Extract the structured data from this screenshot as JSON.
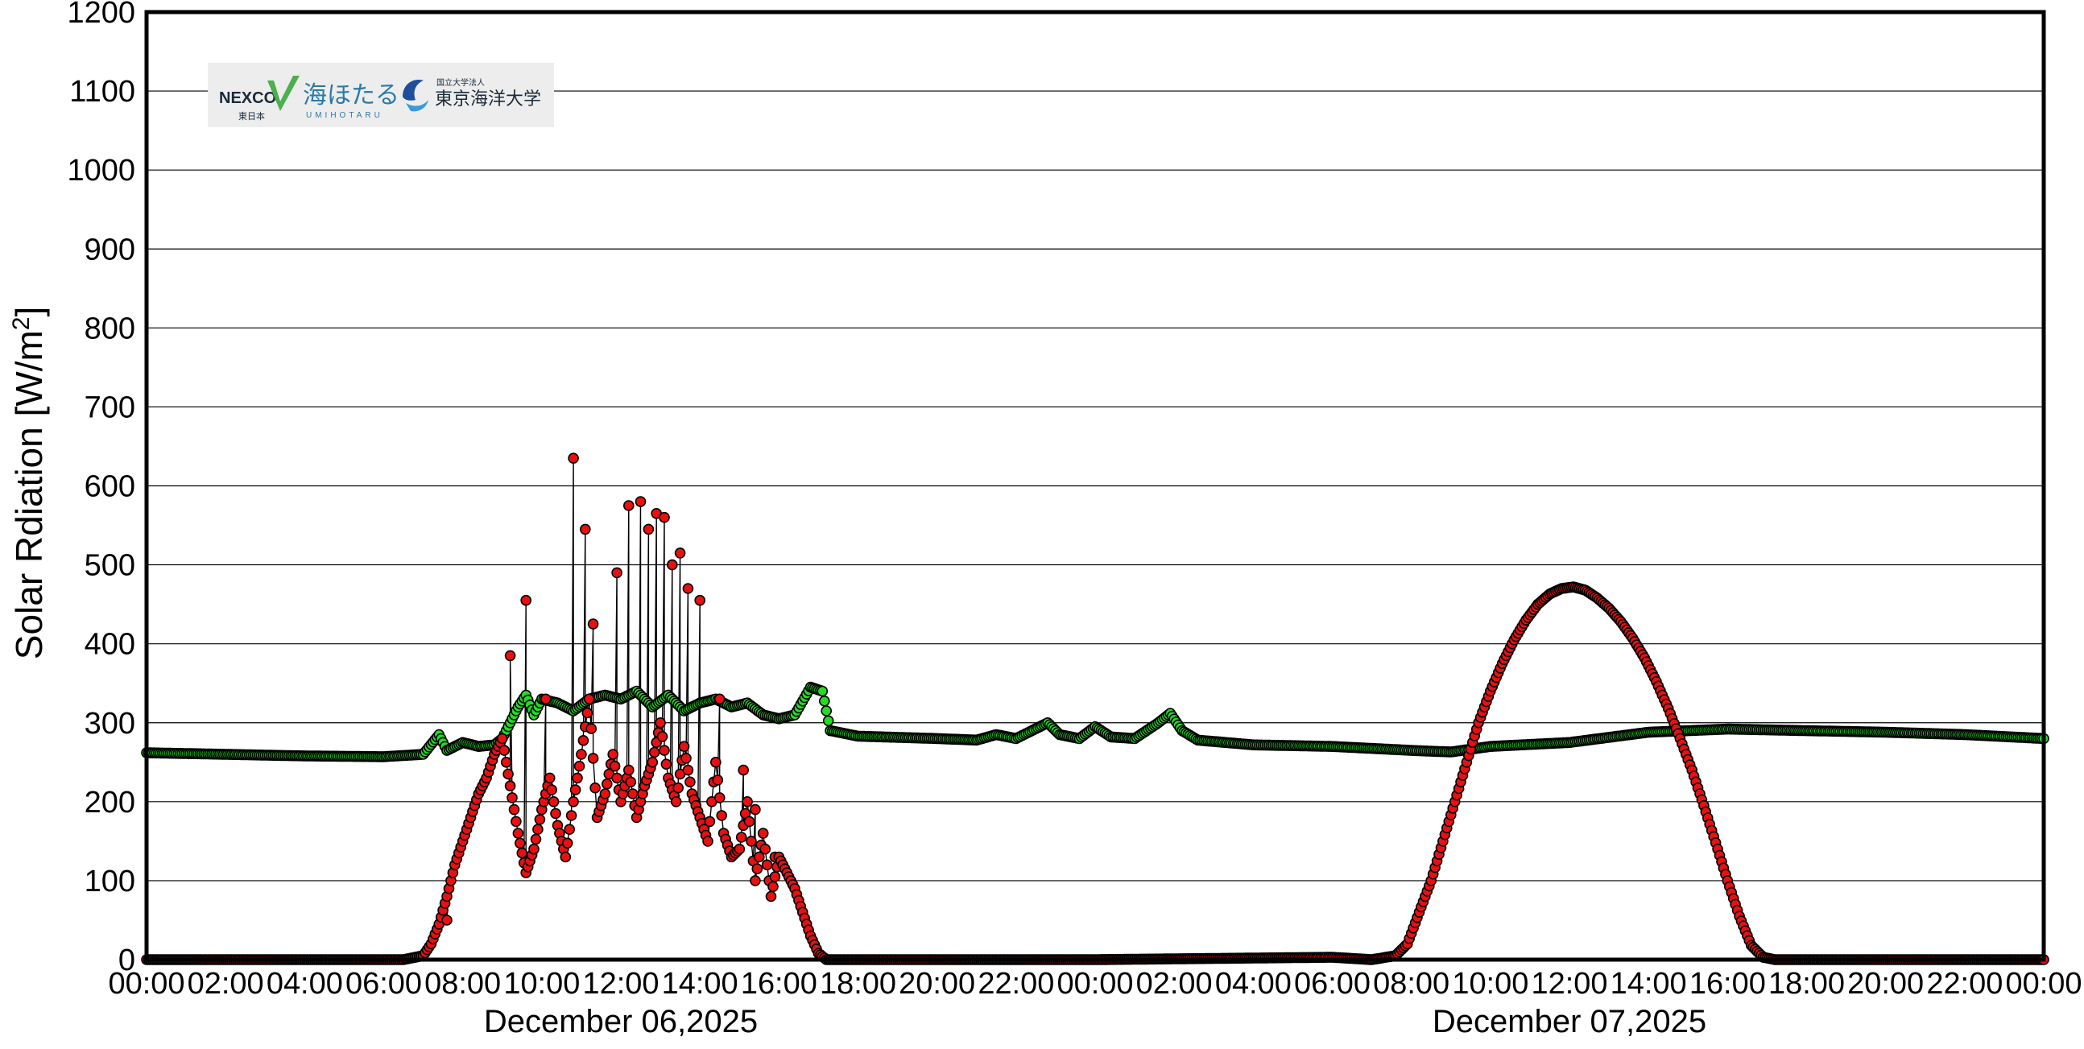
{
  "chart_data": {
    "type": "scatter",
    "ylabel_base": "Solar Rdiation [W/m",
    "ylabel_sup": "2",
    "ylabel_close": "]",
    "ylim": [
      0,
      1200
    ],
    "yticks": [
      0,
      100,
      200,
      300,
      400,
      500,
      600,
      700,
      800,
      900,
      1000,
      1100,
      1200
    ],
    "xlim": [
      0,
      48
    ],
    "xticks": [
      0,
      2,
      4,
      6,
      8,
      10,
      12,
      14,
      16,
      18,
      20,
      22,
      24,
      26,
      28,
      30,
      32,
      34,
      36,
      38,
      40,
      42,
      44,
      46,
      48
    ],
    "xtick_labels": [
      "00:00",
      "02:00",
      "04:00",
      "06:00",
      "08:00",
      "10:00",
      "12:00",
      "14:00",
      "16:00",
      "18:00",
      "20:00",
      "22:00",
      "00:00",
      "02:00",
      "04:00",
      "06:00",
      "08:00",
      "10:00",
      "12:00",
      "14:00",
      "16:00",
      "18:00",
      "20:00",
      "22:00",
      "00:00"
    ],
    "dates": [
      {
        "label": "December 06,2025",
        "center_hour": 12
      },
      {
        "label": "December 07,2025",
        "center_hour": 36
      }
    ],
    "grid": true,
    "series": [
      {
        "color": "#e81010",
        "edge": "#000000",
        "points": [
          [
            0,
            0
          ],
          [
            6.5,
            0
          ],
          [
            7,
            5
          ],
          [
            7.2,
            20
          ],
          [
            7.4,
            45
          ],
          [
            7.6,
            80
          ],
          [
            7.8,
            120
          ],
          [
            8,
            150
          ],
          [
            8.2,
            180
          ],
          [
            8.4,
            210
          ],
          [
            8.6,
            230
          ],
          [
            8.8,
            260
          ],
          [
            9.0,
            280
          ],
          [
            9.2,
            220
          ],
          [
            9.4,
            160
          ],
          [
            9.6,
            110
          ],
          [
            9.8,
            140
          ],
          [
            10.0,
            190
          ],
          [
            10.2,
            230
          ],
          [
            10.4,
            170
          ],
          [
            10.6,
            130
          ],
          [
            10.8,
            200
          ],
          [
            11.0,
            260
          ],
          [
            11.2,
            330
          ],
          [
            11.4,
            180
          ],
          [
            11.6,
            210
          ],
          [
            11.8,
            260
          ],
          [
            12.0,
            200
          ],
          [
            12.2,
            240
          ],
          [
            12.4,
            180
          ],
          [
            12.6,
            220
          ],
          [
            12.8,
            250
          ],
          [
            13.0,
            300
          ],
          [
            13.2,
            230
          ],
          [
            13.4,
            200
          ],
          [
            13.6,
            270
          ],
          [
            13.8,
            210
          ],
          [
            14.0,
            180
          ],
          [
            14.2,
            150
          ],
          [
            14.4,
            250
          ],
          [
            14.6,
            160
          ],
          [
            14.8,
            130
          ],
          [
            15.0,
            140
          ],
          [
            15.2,
            200
          ],
          [
            15.4,
            100
          ],
          [
            15.6,
            160
          ],
          [
            15.8,
            80
          ],
          [
            16.0,
            130
          ],
          [
            16.2,
            110
          ],
          [
            16.4,
            90
          ],
          [
            16.6,
            60
          ],
          [
            16.8,
            30
          ],
          [
            17.0,
            8
          ],
          [
            17.2,
            0
          ],
          [
            24,
            0
          ],
          [
            30,
            3
          ],
          [
            31.0,
            0
          ],
          [
            31.6,
            5
          ],
          [
            31.9,
            20
          ],
          [
            32.2,
            60
          ],
          [
            32.5,
            100
          ],
          [
            32.8,
            150
          ],
          [
            33.1,
            200
          ],
          [
            33.4,
            250
          ],
          [
            33.7,
            300
          ],
          [
            34.0,
            340
          ],
          [
            34.3,
            375
          ],
          [
            34.6,
            405
          ],
          [
            34.9,
            430
          ],
          [
            35.2,
            450
          ],
          [
            35.5,
            463
          ],
          [
            35.8,
            470
          ],
          [
            36.1,
            472
          ],
          [
            36.4,
            468
          ],
          [
            36.7,
            458
          ],
          [
            37.0,
            445
          ],
          [
            37.3,
            428
          ],
          [
            37.6,
            407
          ],
          [
            37.9,
            382
          ],
          [
            38.2,
            352
          ],
          [
            38.5,
            318
          ],
          [
            38.8,
            280
          ],
          [
            39.1,
            240
          ],
          [
            39.4,
            195
          ],
          [
            39.7,
            148
          ],
          [
            40.0,
            100
          ],
          [
            40.3,
            55
          ],
          [
            40.6,
            18
          ],
          [
            40.9,
            3
          ],
          [
            41.2,
            0
          ],
          [
            48,
            0
          ]
        ],
        "spikes": [
          [
            7.6,
            50
          ],
          [
            9.2,
            385
          ],
          [
            9.6,
            455
          ],
          [
            10.1,
            330
          ],
          [
            10.8,
            635
          ],
          [
            11.1,
            545
          ],
          [
            11.3,
            425
          ],
          [
            11.9,
            490
          ],
          [
            12.2,
            575
          ],
          [
            12.5,
            580
          ],
          [
            12.7,
            545
          ],
          [
            12.9,
            565
          ],
          [
            13.1,
            560
          ],
          [
            13.3,
            500
          ],
          [
            13.5,
            515
          ],
          [
            13.7,
            470
          ],
          [
            14.0,
            455
          ],
          [
            14.5,
            330
          ],
          [
            15.1,
            240
          ],
          [
            15.4,
            190
          ],
          [
            15.9,
            130
          ]
        ]
      },
      {
        "color": "#22dd22",
        "edge": "#000000",
        "points": [
          [
            0,
            262
          ],
          [
            2,
            260
          ],
          [
            4,
            258
          ],
          [
            6,
            257
          ],
          [
            7.0,
            260
          ],
          [
            7.4,
            285
          ],
          [
            7.6,
            265
          ],
          [
            8.0,
            275
          ],
          [
            8.4,
            270
          ],
          [
            8.8,
            272
          ],
          [
            9.0,
            280
          ],
          [
            9.2,
            300
          ],
          [
            9.4,
            320
          ],
          [
            9.6,
            335
          ],
          [
            9.8,
            310
          ],
          [
            10.0,
            330
          ],
          [
            10.4,
            325
          ],
          [
            10.8,
            315
          ],
          [
            11.2,
            330
          ],
          [
            11.6,
            335
          ],
          [
            12.0,
            330
          ],
          [
            12.4,
            340
          ],
          [
            12.8,
            320
          ],
          [
            13.2,
            335
          ],
          [
            13.6,
            315
          ],
          [
            14.0,
            325
          ],
          [
            14.4,
            330
          ],
          [
            14.8,
            320
          ],
          [
            15.2,
            325
          ],
          [
            15.6,
            310
          ],
          [
            16.0,
            305
          ],
          [
            16.4,
            310
          ],
          [
            16.8,
            345
          ],
          [
            17.1,
            340
          ],
          [
            17.3,
            290
          ],
          [
            18,
            283
          ],
          [
            20,
            280
          ],
          [
            21,
            278
          ],
          [
            21.5,
            285
          ],
          [
            22.0,
            280
          ],
          [
            22.8,
            300
          ],
          [
            23.1,
            285
          ],
          [
            23.6,
            280
          ],
          [
            24.0,
            295
          ],
          [
            24.4,
            282
          ],
          [
            25.0,
            280
          ],
          [
            25.6,
            300
          ],
          [
            25.9,
            312
          ],
          [
            26.2,
            290
          ],
          [
            26.6,
            278
          ],
          [
            28,
            272
          ],
          [
            30,
            270
          ],
          [
            32,
            265
          ],
          [
            33,
            263
          ],
          [
            34,
            270
          ],
          [
            36,
            275
          ],
          [
            38,
            288
          ],
          [
            40,
            292
          ],
          [
            44,
            288
          ],
          [
            46,
            285
          ],
          [
            48,
            280
          ]
        ]
      }
    ]
  },
  "logo": {
    "nexco_main": "NEXCO",
    "nexco_sub": "東日本",
    "umihotaru_main": "海ほたる",
    "umihotaru_sub": "UMIHOTARU",
    "university_sub": "国立大学法人",
    "university_main": "東京海洋大学"
  }
}
